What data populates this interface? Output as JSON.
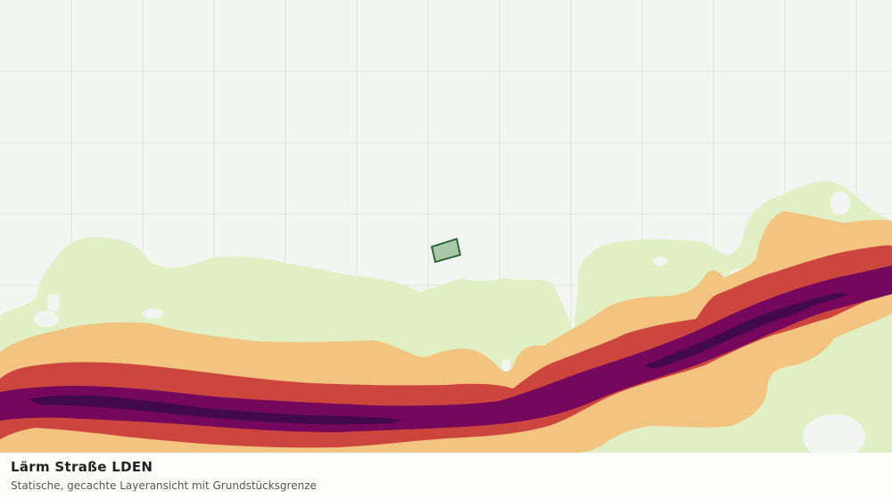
{
  "map": {
    "layer": "Lärm Straße LDEN",
    "colors": {
      "background": "#f3f5f2",
      "grid": "#e2e4e1",
      "band_light_green": "#e1f0c4",
      "band_orange": "#f3c480",
      "band_red": "#cd463e",
      "band_magenta": "#75075c",
      "band_dark": "#430a4a",
      "parcel_fill": "#a9c8a8",
      "parcel_stroke": "#1f5c30"
    }
  },
  "caption": {
    "title": "Lärm Straße LDEN",
    "subtitle": "Statische, gecachte Layeransicht mit Grundstücksgrenze"
  }
}
